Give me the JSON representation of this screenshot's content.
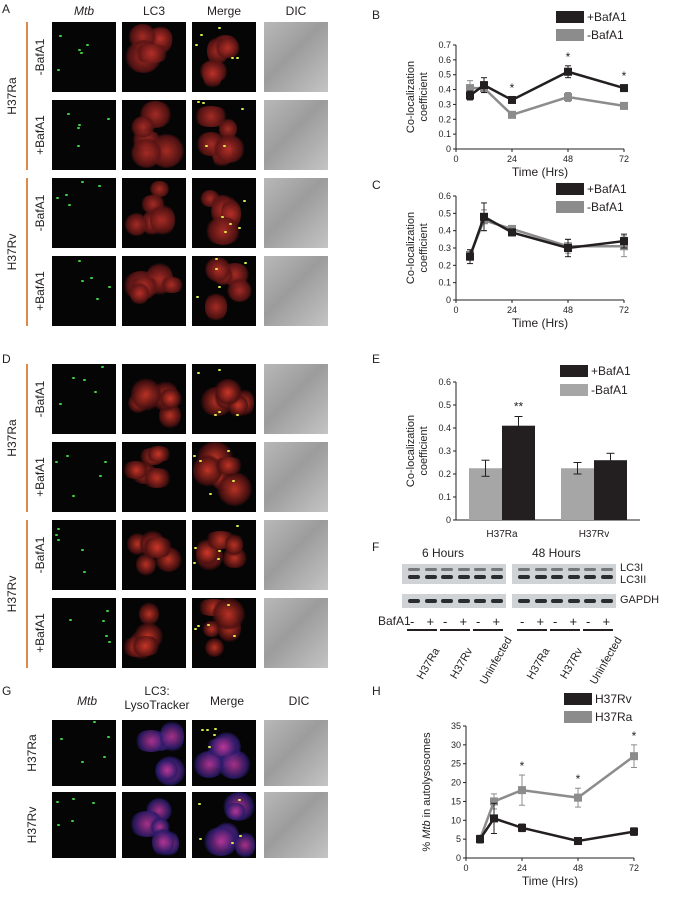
{
  "panel_letters": {
    "A": "A",
    "B": "B",
    "C": "C",
    "D": "D",
    "E": "E",
    "F": "F",
    "G": "G",
    "H": "H"
  },
  "columns_top": [
    "Mtb",
    "LC3",
    "Merge",
    "DIC"
  ],
  "columns_g": [
    "Mtb",
    "LC3:\nLysoTracker",
    "Merge",
    "DIC"
  ],
  "strains": {
    "ra": "H37Ra",
    "rv": "H37Rv"
  },
  "treatments": {
    "minus": "-BafA1",
    "plus": "+BafA1"
  },
  "chart_data": [
    {
      "id": "B",
      "type": "line",
      "ylabel": "Co-localization coefficient",
      "xlabel": "Time (Hrs)",
      "x": [
        6,
        12,
        24,
        48,
        72
      ],
      "xticks": [
        0,
        24,
        48,
        72
      ],
      "ylim": [
        0,
        0.7
      ],
      "yticks": [
        0,
        0.1,
        0.2,
        0.3,
        0.4,
        0.5,
        0.6,
        0.7
      ],
      "ytick_labels": [
        "0",
        "0.1",
        "0.2",
        "0.3",
        "0.4",
        "0.5",
        "0.6",
        "0.7"
      ],
      "legend_placement": "top-right",
      "series": [
        {
          "name": "+BafA1",
          "color": "#231f20",
          "values": [
            0.36,
            0.43,
            0.33,
            0.52,
            0.41
          ],
          "err": [
            0.03,
            0.05,
            0.02,
            0.04,
            0.02
          ]
        },
        {
          "name": "-BafA1",
          "color": "#8c8c8c",
          "values": [
            0.41,
            0.41,
            0.23,
            0.35,
            0.29
          ],
          "err": [
            0.05,
            0.03,
            0.02,
            0.03,
            0.02
          ]
        }
      ],
      "annotations": [
        {
          "x": 24,
          "text": "*"
        },
        {
          "x": 48,
          "text": "*"
        },
        {
          "x": 72,
          "text": "*"
        }
      ]
    },
    {
      "id": "C",
      "type": "line",
      "ylabel": "Co-localization coefficient",
      "xlabel": "Time (Hrs)",
      "x": [
        6,
        12,
        24,
        48,
        72
      ],
      "xticks": [
        0,
        24,
        48,
        72
      ],
      "ylim": [
        0,
        0.6
      ],
      "yticks": [
        0,
        0.1,
        0.2,
        0.3,
        0.4,
        0.5,
        0.6
      ],
      "ytick_labels": [
        "0",
        "0.1",
        "0.2",
        "0.3",
        "0.4",
        "0.5",
        "0.6"
      ],
      "legend_placement": "top-right",
      "series": [
        {
          "name": "+BafA1",
          "color": "#231f20",
          "values": [
            0.25,
            0.48,
            0.39,
            0.3,
            0.34
          ],
          "err": [
            0.04,
            0.08,
            0.02,
            0.05,
            0.04
          ]
        },
        {
          "name": "-BafA1",
          "color": "#8c8c8c",
          "values": [
            0.26,
            0.46,
            0.41,
            0.31,
            0.31
          ],
          "err": [
            0.03,
            0.06,
            0.02,
            0.04,
            0.06
          ]
        }
      ],
      "annotations": []
    },
    {
      "id": "E",
      "type": "bar",
      "ylabel": "Co-localization coefficient",
      "xlabel": "",
      "categories": [
        "H37Ra",
        "H37Rv"
      ],
      "ylim": [
        0,
        0.6
      ],
      "yticks": [
        0,
        0.1,
        0.2,
        0.3,
        0.4,
        0.5,
        0.6
      ],
      "ytick_labels": [
        "0",
        "0.1",
        "0.2",
        "0.3",
        "0.4",
        "0.5",
        "0.6"
      ],
      "legend_placement": "top-right",
      "series": [
        {
          "name": "+BafA1",
          "color": "#231f20",
          "values": [
            0.41,
            0.26
          ],
          "err": [
            0.04,
            0.03
          ]
        },
        {
          "name": "-BafA1",
          "color": "#a6a6a6",
          "values": [
            0.225,
            0.225
          ],
          "err": [
            0.035,
            0.025
          ]
        }
      ],
      "annotations": [
        {
          "category": "H37Ra",
          "text": "**"
        }
      ]
    },
    {
      "id": "H",
      "type": "line",
      "ylabel": "% Mtb in autolysosomes",
      "xlabel": "Time (Hrs)",
      "x": [
        6,
        12,
        24,
        48,
        72
      ],
      "xticks": [
        0,
        24,
        48,
        72
      ],
      "ylim": [
        0,
        35
      ],
      "yticks": [
        0,
        5,
        10,
        15,
        20,
        25,
        30,
        35
      ],
      "ytick_labels": [
        "0",
        "5",
        "10",
        "15",
        "20",
        "25",
        "30",
        "35"
      ],
      "legend_placement": "top-right",
      "series": [
        {
          "name": "H37Rv",
          "color": "#231f20",
          "values": [
            5,
            10.5,
            8,
            4.5,
            7
          ],
          "err": [
            1,
            4,
            1,
            0.5,
            1
          ]
        },
        {
          "name": "H37Ra",
          "color": "#8c8c8c",
          "values": [
            5,
            15,
            18,
            16,
            27
          ],
          "err": [
            1,
            2,
            4,
            2.5,
            3
          ]
        }
      ],
      "annotations": [
        {
          "x": 24,
          "text": "*"
        },
        {
          "x": 48,
          "text": "*"
        },
        {
          "x": 72,
          "text": "*"
        }
      ]
    }
  ],
  "blot": {
    "time_labels": [
      "6 Hours",
      "48 Hours"
    ],
    "band_labels": [
      "LC3I",
      "LC3II",
      "GAPDH"
    ],
    "bafa1_label": "BafA1",
    "signs": [
      "-",
      "+",
      "-",
      "+",
      "-",
      "+"
    ],
    "groups": [
      "H37Ra",
      "H37Rv",
      "Uninfected"
    ]
  },
  "micrograph_tiles": {
    "description_free": true
  }
}
